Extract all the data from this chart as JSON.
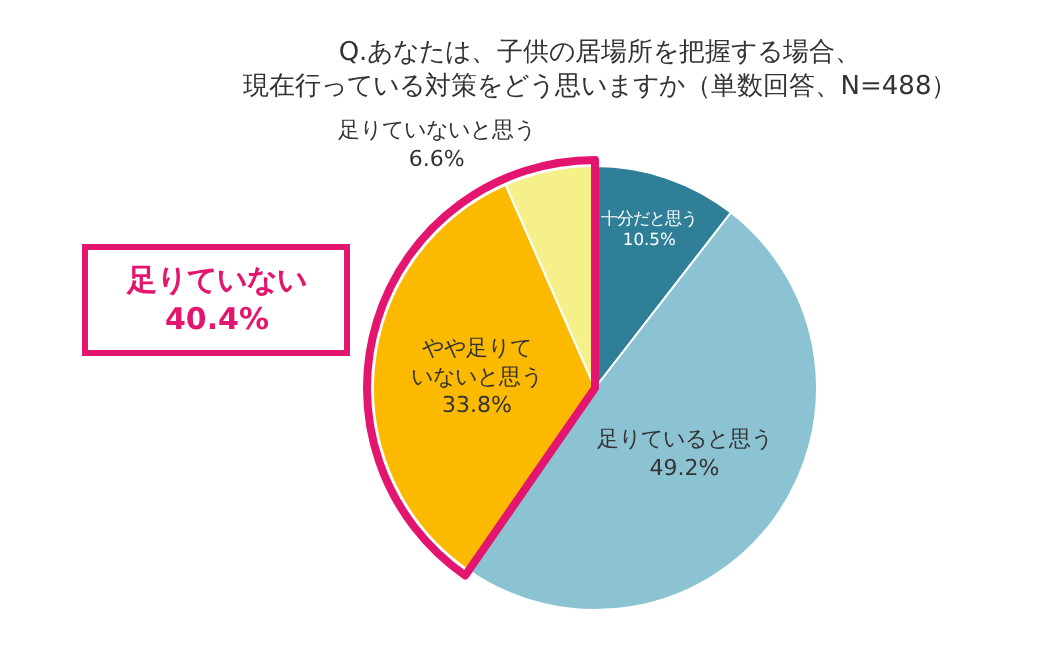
{
  "chart_data": {
    "type": "pie",
    "title": "Q.あなたは、子供の居場所を把握する場合、現在行っている対策をどう思いますか（単数回答、N=488）",
    "categories": [
      "十分だと思う",
      "足りていると思う",
      "やや足りていないと思う",
      "足りていないと思う"
    ],
    "values": [
      10.5,
      49.2,
      33.8,
      6.6
    ],
    "value_labels": [
      "10.5%",
      "49.2%",
      "33.8%",
      "6.6%"
    ],
    "colors": [
      "#2f7f98",
      "#8cc3d3",
      "#fbb900",
      "#f5f08a"
    ],
    "legend": false,
    "annotations": [
      "足りていない40.4%"
    ]
  }
}
